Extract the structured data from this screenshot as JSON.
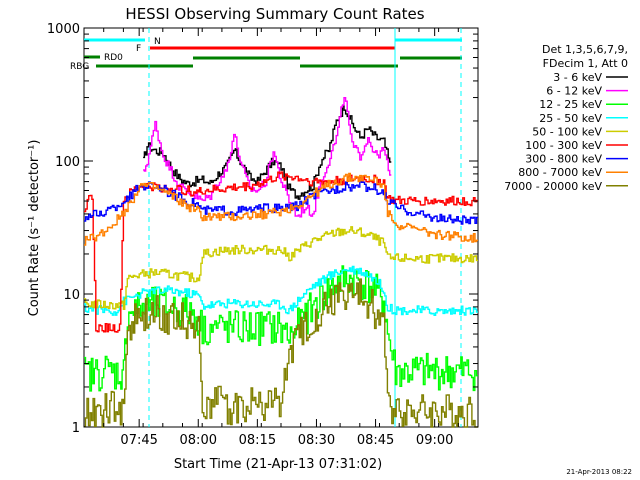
{
  "chart_data": {
    "type": "line",
    "title": "HESSI Observing Summary Count Rates",
    "ylabel": "Count Rate (s⁻¹ detector⁻¹)",
    "xlabel": "Start Time (21-Apr-13 07:31:02)",
    "yscale": "log",
    "ylim": [
      1,
      1000
    ],
    "xlim_minutes": [
      0,
      100
    ],
    "x_ticks": [
      {
        "label": "07:45",
        "minute": 14
      },
      {
        "label": "08:00",
        "minute": 29
      },
      {
        "label": "08:15",
        "minute": 44
      },
      {
        "label": "08:30",
        "minute": 59
      },
      {
        "label": "08:45",
        "minute": 74
      },
      {
        "label": "09:00",
        "minute": 89
      }
    ],
    "y_ticks": [
      {
        "label": "1",
        "value": 1
      },
      {
        "label": "10",
        "value": 10
      },
      {
        "label": "100",
        "value": 100
      },
      {
        "label": "1000",
        "value": 1000
      }
    ],
    "legend_placement": "right",
    "legend_header": [
      "Det 1,3,5,6,7,9,",
      "FDecim 1, Att 0"
    ],
    "timestamp": "21-Apr-2013 08:22",
    "flag_labels": {
      "N": "N",
      "F": "F",
      "RDO": "RD0",
      "RBG": "RBG"
    },
    "flag_colors": {
      "N": "#00ffff",
      "F": "#ff0000",
      "RDO": "#008000",
      "RBG": "#008000"
    },
    "series": [
      {
        "name": "3 - 6 keV",
        "color": "#000000",
        "x": [
          15,
          16,
          18,
          20,
          22,
          24,
          26,
          28,
          30,
          32,
          34,
          36,
          38,
          40,
          42,
          44,
          46,
          48,
          50,
          52,
          54,
          56,
          58,
          60,
          62,
          64,
          66,
          68,
          70,
          72,
          74,
          76,
          78
        ],
        "y": [
          100,
          130,
          120,
          115,
          90,
          75,
          68,
          70,
          72,
          68,
          80,
          90,
          120,
          95,
          75,
          70,
          85,
          100,
          90,
          62,
          55,
          60,
          65,
          100,
          120,
          200,
          260,
          190,
          150,
          175,
          150,
          140,
          85
        ]
      },
      {
        "name": "6 - 12 keV",
        "color": "#ff00ff",
        "x": [
          15,
          16,
          18,
          20,
          22,
          24,
          26,
          28,
          30,
          32,
          34,
          36,
          38,
          40,
          42,
          44,
          46,
          48,
          50,
          52,
          54,
          56,
          58,
          60,
          62,
          64,
          66,
          68,
          70,
          72,
          74,
          76,
          78
        ],
        "y": [
          80,
          100,
          190,
          110,
          85,
          65,
          60,
          55,
          50,
          55,
          70,
          85,
          160,
          90,
          62,
          60,
          70,
          120,
          70,
          50,
          38,
          45,
          40,
          70,
          100,
          150,
          320,
          130,
          110,
          150,
          110,
          120,
          70
        ]
      },
      {
        "name": "12 - 25 keV",
        "color": "#00ff00",
        "x": [
          0,
          3,
          5,
          7,
          9,
          10,
          11,
          14,
          18,
          22,
          25,
          28,
          30,
          34,
          38,
          42,
          46,
          50,
          52,
          55,
          58,
          61,
          64,
          67,
          70,
          73,
          76,
          77,
          79,
          85,
          90,
          93,
          96,
          100
        ],
        "y": [
          2.5,
          2.5,
          2.7,
          2.6,
          2.5,
          2.6,
          7.5,
          7.8,
          8.2,
          8,
          7.5,
          7.2,
          5.5,
          5.6,
          5.5,
          5.6,
          5.6,
          5.5,
          4.8,
          6,
          8,
          10,
          12,
          13,
          12.5,
          11,
          9,
          5,
          2.6,
          2.6,
          2.6,
          2.6,
          2.6,
          2.6
        ]
      },
      {
        "name": "25 - 50 keV",
        "color": "#00ffff",
        "x": [
          0,
          4,
          8,
          9,
          10,
          12,
          14,
          18,
          22,
          26,
          29,
          30,
          33,
          36,
          40,
          44,
          48,
          50,
          52,
          55,
          58,
          61,
          64,
          67,
          70,
          73,
          76,
          77,
          79,
          85,
          90,
          95,
          100
        ],
        "y": [
          7.8,
          7.6,
          7.4,
          8,
          8.8,
          9.4,
          10,
          10.5,
          10.6,
          10.2,
          9.8,
          8.2,
          8.3,
          8.5,
          8.5,
          8.4,
          8.4,
          8.3,
          7.5,
          9.5,
          11.5,
          13,
          14.5,
          15.5,
          15,
          13.5,
          11,
          7.8,
          7.6,
          7.5,
          7.4,
          7.5,
          7.5
        ]
      },
      {
        "name": "50 - 100 keV",
        "color": "#cccc00",
        "x": [
          0,
          5,
          10,
          11,
          14,
          18,
          22,
          26,
          29,
          30,
          34,
          38,
          42,
          46,
          50,
          52,
          55,
          58,
          61,
          64,
          67,
          70,
          73,
          76,
          77,
          79,
          85,
          90,
          95,
          100
        ],
        "y": [
          8.5,
          8.3,
          8.2,
          13,
          14,
          14.5,
          14,
          13.5,
          13,
          20,
          21,
          21.5,
          21.5,
          21.5,
          21.5,
          19,
          22,
          25,
          27,
          29,
          30,
          29,
          27,
          24,
          18.5,
          18.5,
          18.5,
          18.5,
          18.5,
          18.5
        ]
      },
      {
        "name": "100 - 300 keV",
        "color": "#ff0000",
        "x": [
          0,
          2,
          3,
          5,
          9,
          10,
          14,
          18,
          22,
          26,
          29,
          30,
          34,
          38,
          42,
          46,
          50,
          54,
          58,
          62,
          66,
          70,
          74,
          76,
          77,
          79,
          85,
          90,
          95,
          100
        ],
        "y": [
          45,
          55,
          5.5,
          5.6,
          5.5,
          52,
          65,
          64,
          62,
          60,
          58,
          60,
          61,
          63,
          65,
          70,
          78,
          75,
          70,
          70,
          72,
          74,
          72,
          70,
          52,
          50,
          50,
          50,
          50,
          50
        ]
      },
      {
        "name": "300 - 800 keV",
        "color": "#0000ff",
        "x": [
          0,
          4,
          8,
          12,
          14,
          18,
          22,
          26,
          29,
          30,
          34,
          38,
          42,
          46,
          50,
          54,
          58,
          62,
          66,
          70,
          74,
          76,
          77,
          80,
          85,
          90,
          95,
          100
        ],
        "y": [
          38,
          40,
          45,
          55,
          65,
          66,
          57,
          50,
          47,
          42,
          43,
          42,
          43,
          44,
          44,
          46,
          55,
          60,
          64,
          65,
          62,
          56,
          50,
          44,
          40,
          37,
          36,
          35
        ]
      },
      {
        "name": "800 - 7000 keV",
        "color": "#ff8000",
        "x": [
          0,
          4,
          8,
          12,
          14,
          18,
          22,
          26,
          29,
          30,
          34,
          38,
          42,
          46,
          50,
          54,
          58,
          62,
          66,
          70,
          74,
          76,
          77,
          80,
          85,
          90,
          95,
          100
        ],
        "y": [
          25,
          28,
          35,
          50,
          66,
          63,
          55,
          46,
          42,
          38,
          38,
          38,
          39,
          40,
          42,
          46,
          56,
          66,
          74,
          75,
          72,
          64,
          40,
          33,
          30,
          28,
          27,
          26
        ]
      },
      {
        "name": "7000 - 20000 keV",
        "color": "#808000",
        "x": [
          0,
          5,
          10,
          11,
          14,
          18,
          22,
          26,
          29,
          30,
          34,
          38,
          42,
          46,
          50,
          52,
          55,
          58,
          61,
          64,
          67,
          70,
          73,
          76,
          77,
          80,
          85,
          90,
          95,
          100
        ],
        "y": [
          1.3,
          1.3,
          1.4,
          5.5,
          6.5,
          7.2,
          6.8,
          6.2,
          5.5,
          1.6,
          1.5,
          1.4,
          1.5,
          1.5,
          1.6,
          3.5,
          5,
          6.5,
          8,
          9.5,
          10,
          9.5,
          8,
          6,
          1.4,
          1.4,
          1.3,
          1.3,
          1.3,
          1.3
        ]
      }
    ]
  }
}
